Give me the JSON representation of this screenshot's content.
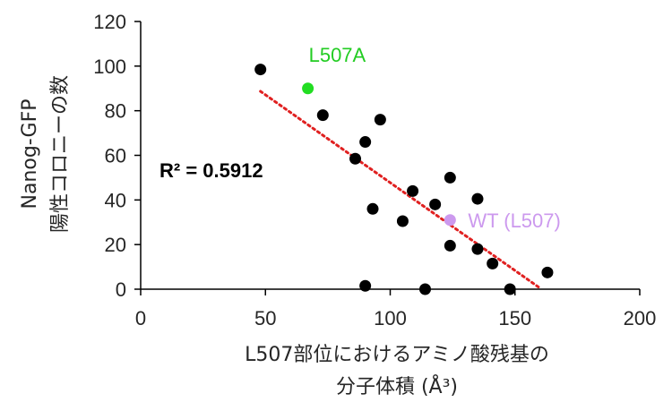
{
  "chart_data": {
    "type": "scatter",
    "xlabel_lines": [
      "L507部位におけるアミノ酸残基の",
      "分子体積 (Å³)"
    ],
    "ylabel_lines": [
      "Nanog-GFP",
      "陽性コロニーの数"
    ],
    "xlim": [
      0,
      200
    ],
    "ylim": [
      0,
      120
    ],
    "xticks": [
      0,
      50,
      100,
      150,
      200
    ],
    "yticks": [
      0,
      20,
      40,
      60,
      80,
      100,
      120
    ],
    "grid": false,
    "series": [
      {
        "color": "#000000",
        "points": [
          [
            48,
            98.5
          ],
          [
            73,
            78
          ],
          [
            86,
            58.5
          ],
          [
            90,
            66
          ],
          [
            96,
            76
          ],
          [
            93,
            36
          ],
          [
            105,
            30.5
          ],
          [
            109,
            44
          ],
          [
            118,
            38
          ],
          [
            124,
            50
          ],
          [
            135,
            40.5
          ],
          [
            124,
            19.5
          ],
          [
            135,
            18
          ],
          [
            141,
            11.5
          ],
          [
            163,
            7.5
          ],
          [
            90,
            1.5
          ],
          [
            114,
            0
          ],
          [
            148,
            0
          ]
        ]
      },
      {
        "color": "#22dd22",
        "points": [
          [
            67,
            90
          ]
        ]
      },
      {
        "color": "#cc99ee",
        "points": [
          [
            124,
            31
          ]
        ]
      }
    ],
    "trendline": {
      "x_range": [
        48,
        160
      ],
      "slope": -0.7875,
      "intercept": 126.5,
      "color": "#e02020",
      "style": "dotted"
    },
    "annotations": [
      {
        "text": "L507A",
        "color": "#22cc22",
        "x": 67,
        "y": 90,
        "position": "above"
      },
      {
        "text": "WT (L507)",
        "color": "#cc99ee",
        "x": 124,
        "y": 31,
        "position": "right"
      }
    ],
    "r_squared_text": "R² = 0.5912"
  }
}
